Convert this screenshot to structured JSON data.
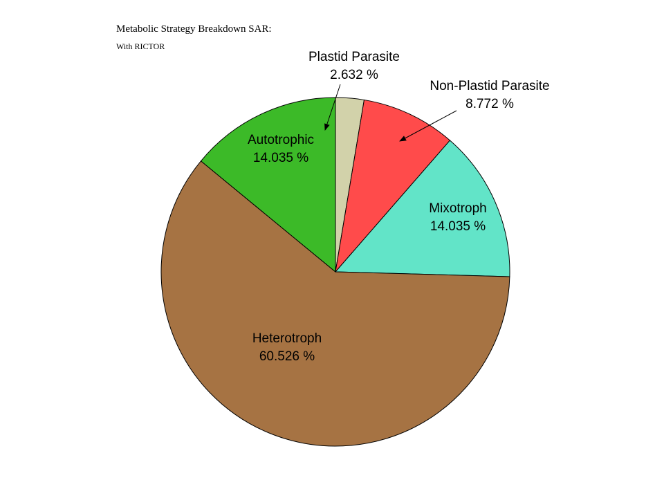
{
  "chart_data": {
    "type": "pie",
    "title": "Metabolic Strategy Breakdown SAR:",
    "subtitle": "With RICTOR",
    "slices": [
      {
        "label": "Plastid Parasite",
        "value_text": "2.632 %",
        "value": 2.632,
        "color": "#d2d2aa"
      },
      {
        "label": "Non-Plastid Parasite",
        "value_text": "8.772 %",
        "value": 8.772,
        "color": "#ff4b4b"
      },
      {
        "label": "Mixotroph",
        "value_text": "14.035 %",
        "value": 14.035,
        "color": "#62e4c8"
      },
      {
        "label": "Heterotroph",
        "value_text": "60.526 %",
        "value": 60.526,
        "color": "#a67343"
      },
      {
        "label": "Autotrophic",
        "value_text": "14.035 %",
        "value": 14.035,
        "color": "#3cba28"
      }
    ]
  }
}
